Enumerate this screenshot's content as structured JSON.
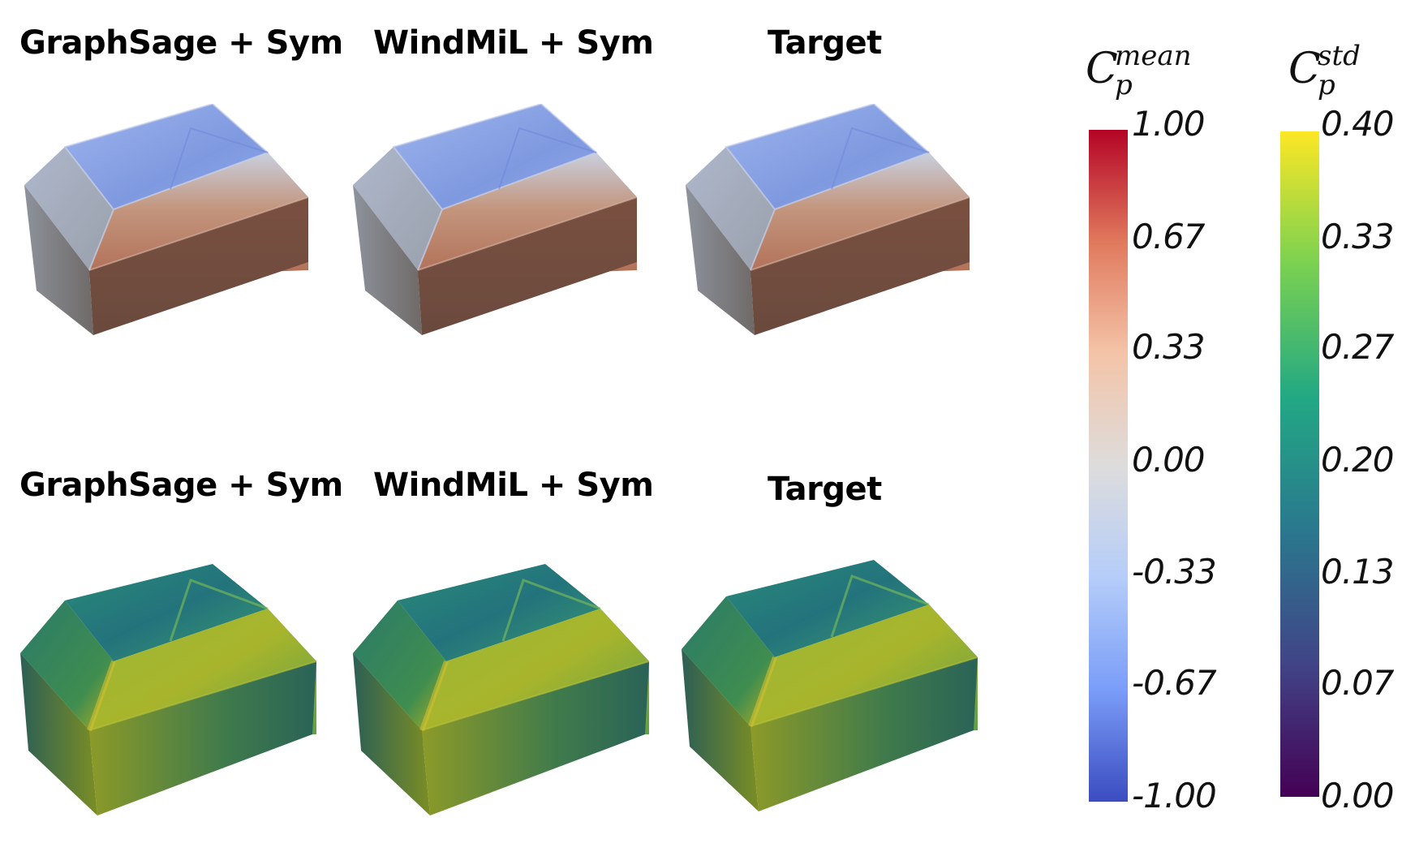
{
  "titles": {
    "row1": [
      "GraphSage + Sym",
      "WindMiL + Sym",
      "Target"
    ],
    "row2": [
      "GraphSage + Sym",
      "WindMiL + Sym",
      "Target"
    ]
  },
  "colorbars": {
    "mean": {
      "symbol": "C",
      "superscript": "mean",
      "subscript": "p",
      "ticks": [
        "1.00",
        "0.67",
        "0.33",
        "0.00",
        "-0.33",
        "-0.67",
        "-1.00"
      ],
      "colors": [
        "#b40426",
        "#e0795d",
        "#f4c4a8",
        "#dddcdc",
        "#b5cdf9",
        "#7a9df8",
        "#3b4cc0"
      ]
    },
    "std": {
      "symbol": "C",
      "superscript": "std",
      "subscript": "p",
      "ticks": [
        "0.40",
        "0.33",
        "0.27",
        "0.20",
        "0.13",
        "0.07",
        "0.00"
      ],
      "colors": [
        "#fde725",
        "#7ad151",
        "#22a884",
        "#2a788e",
        "#414487",
        "#440154"
      ]
    }
  }
}
